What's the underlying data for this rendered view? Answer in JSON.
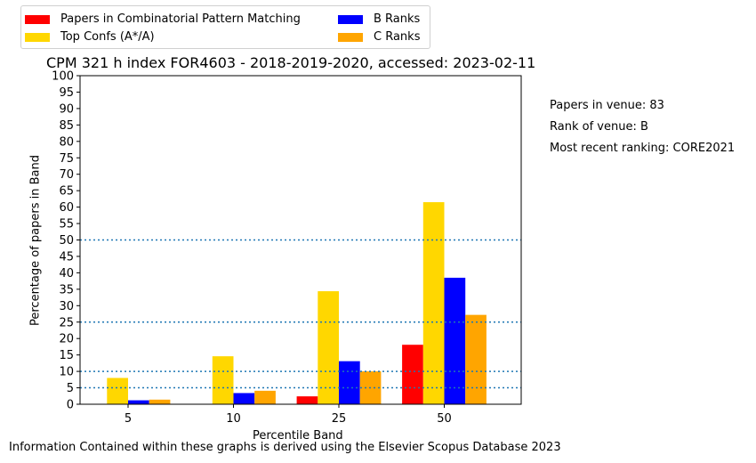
{
  "legend": {
    "items": [
      {
        "label": "Papers in Combinatorial Pattern Matching",
        "color": "#ff0000"
      },
      {
        "label": "Top Confs (A*/A)",
        "color": "#ffd700"
      },
      {
        "label": "B Ranks",
        "color": "#0000ff"
      },
      {
        "label": "C Ranks",
        "color": "#ffa500"
      }
    ]
  },
  "info": {
    "papers": "Papers in venue: 83",
    "rank": "Rank of venue: B",
    "ranking": "Most recent ranking: CORE2021"
  },
  "footer": "Information Contained within these graphs is derived using the Elsevier Scopus Database 2023",
  "chart_data": {
    "type": "bar",
    "title": "CPM 321 h index FOR4603 - 2018-2019-2020, accessed: 2023-02-11",
    "xlabel": "Percentile Band",
    "ylabel": "Percentage of papers in Band",
    "categories": [
      "5",
      "10",
      "25",
      "50"
    ],
    "ylim": [
      0,
      100
    ],
    "yticks": [
      0,
      5,
      10,
      15,
      20,
      25,
      30,
      35,
      40,
      45,
      50,
      55,
      60,
      65,
      70,
      75,
      80,
      85,
      90,
      95,
      100
    ],
    "reference_lines": [
      5,
      10,
      25,
      50
    ],
    "series": [
      {
        "name": "Papers in Combinatorial Pattern Matching",
        "color": "#ff0000",
        "values": [
          0,
          0,
          2.4,
          18.1
        ]
      },
      {
        "name": "Top Confs (A*/A)",
        "color": "#ffd700",
        "values": [
          8.0,
          14.6,
          34.4,
          61.5
        ]
      },
      {
        "name": "B Ranks",
        "color": "#0000ff",
        "values": [
          1.2,
          3.4,
          13.1,
          38.5
        ]
      },
      {
        "name": "C Ranks",
        "color": "#ffa500",
        "values": [
          1.4,
          4.1,
          10.0,
          27.2
        ]
      }
    ]
  }
}
